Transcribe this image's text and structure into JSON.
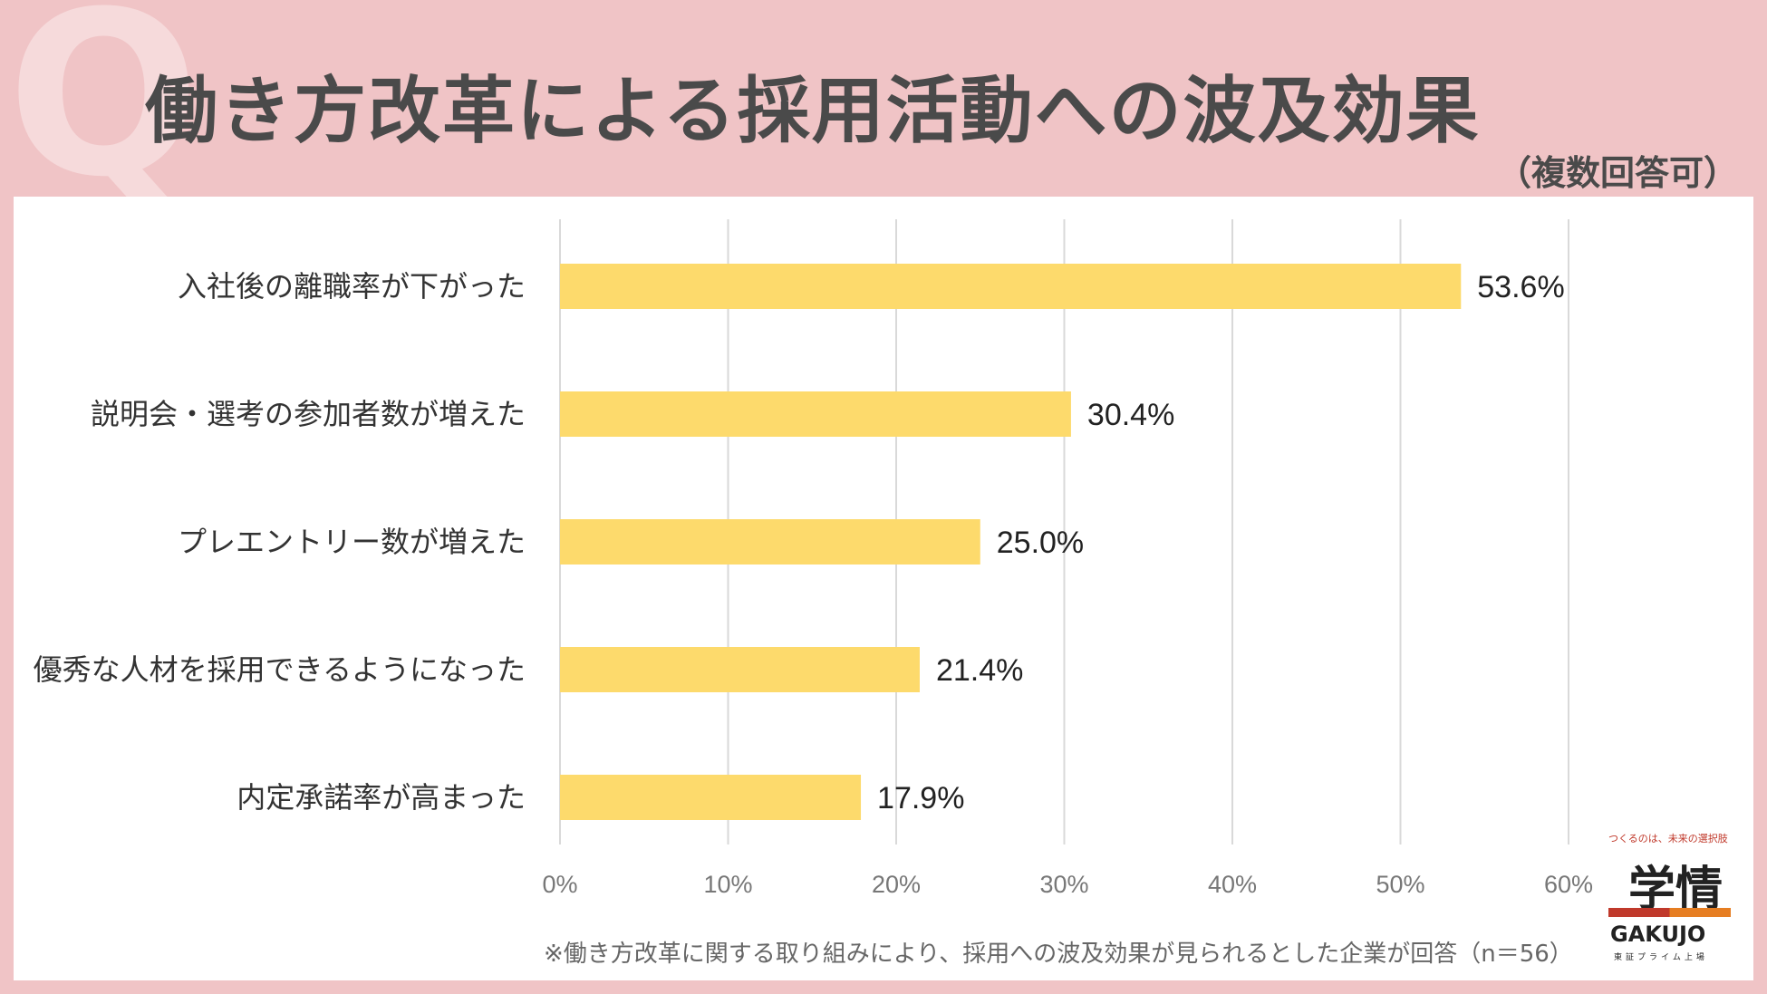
{
  "header": {
    "q_mark": "Q",
    "title": "働き方改革による採用活動への波及効果",
    "subtitle": "（複数回答可）"
  },
  "chart_data": {
    "type": "bar",
    "orientation": "horizontal",
    "categories": [
      "入社後の離職率が下がった",
      "説明会・選考の参加者数が増えた",
      "プレエントリー数が増えた",
      "優秀な人材を採用できるようになった",
      "内定承諾率が高まった"
    ],
    "values": [
      53.6,
      30.4,
      25.0,
      21.4,
      17.9
    ],
    "value_labels": [
      "53.6%",
      "30.4%",
      "25.0%",
      "21.4%",
      "17.9%"
    ],
    "xlim": [
      0,
      60
    ],
    "xticks": [
      0,
      10,
      20,
      30,
      40,
      50,
      60
    ],
    "xtick_labels": [
      "0%",
      "10%",
      "20%",
      "30%",
      "40%",
      "50%",
      "60%"
    ],
    "bar_color": "#fdda6c",
    "grid": true,
    "xlabel": "",
    "ylabel": ""
  },
  "footnote": "※働き方改革に関する取り組みにより、採用への波及効果が見られるとした企業が回答（n＝56）",
  "logo": {
    "tagline": "つくるのは、未来の選択肢",
    "mark": "学情",
    "word": "GAKUJO",
    "sub": "東証プライム上場"
  },
  "colors": {
    "background": "#f0c4c6",
    "title_text": "#4a4a4a",
    "bar": "#fdda6c"
  }
}
